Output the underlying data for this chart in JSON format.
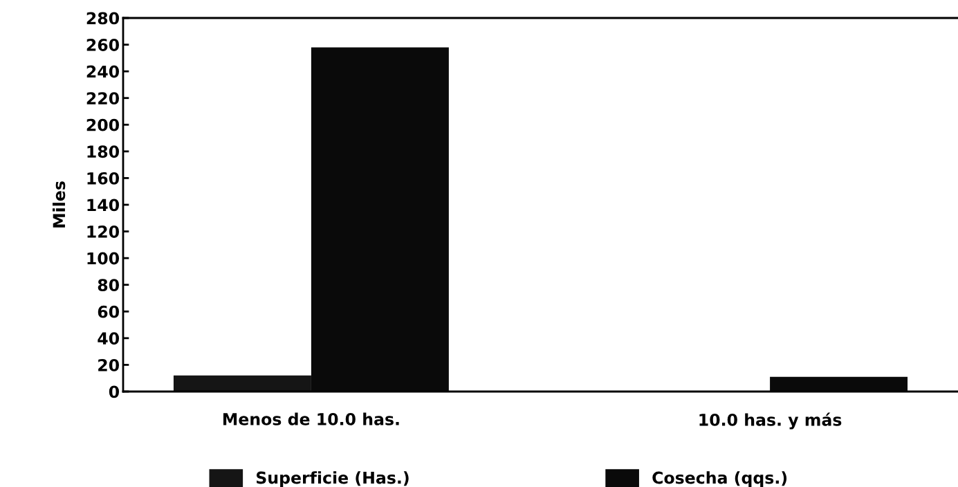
{
  "chart_data": {
    "type": "bar",
    "ylabel": "Miles",
    "categories": [
      "Menos de 10.0 has.",
      "10.0 has. y más"
    ],
    "series": [
      {
        "name": "Superficie (Has.)",
        "color": "#151515",
        "values": [
          12,
          0.5
        ]
      },
      {
        "name": "Cosecha (qqs.)",
        "color": "#0a0a0a",
        "values": [
          258,
          11
        ]
      }
    ],
    "ylim": [
      0,
      280
    ],
    "yticks": [
      0,
      20,
      40,
      60,
      80,
      100,
      120,
      140,
      160,
      180,
      200,
      220,
      240,
      260,
      280
    ],
    "grid": false,
    "legend": "bottom"
  }
}
